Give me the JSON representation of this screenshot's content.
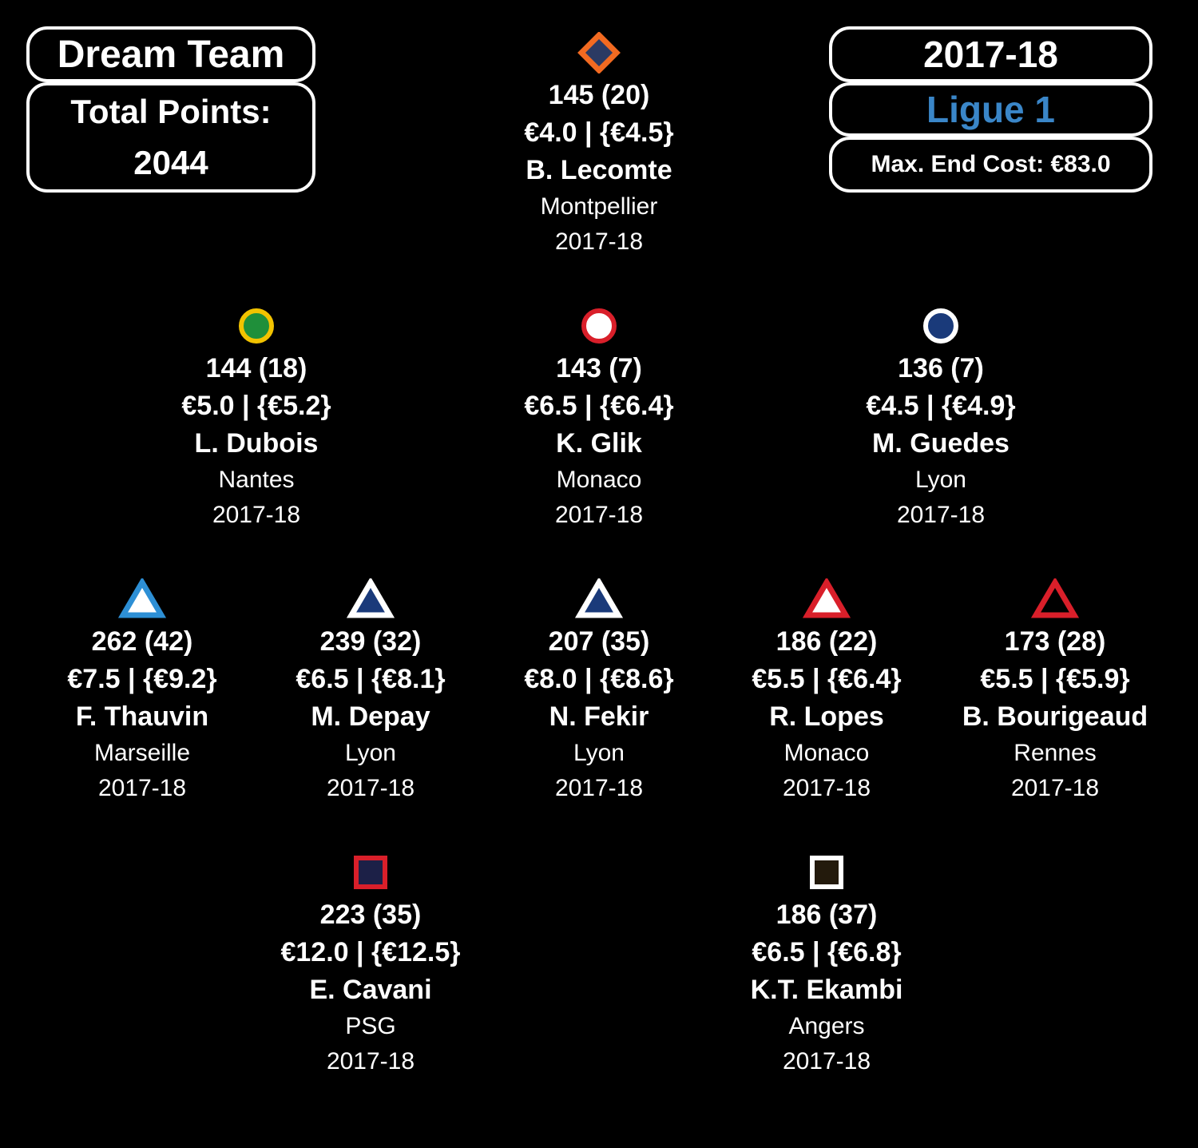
{
  "header": {
    "title": "Dream Team",
    "total_points_label": "Total Points:",
    "total_points_value": "2044",
    "season": "2017-18",
    "league": "Ligue 1",
    "max_end_cost": "Max. End Cost: €83.0"
  },
  "colors": {
    "league_text": "#3a86c8",
    "background": "#000000",
    "text": "#ffffff"
  },
  "players": [
    {
      "id": "lecomte",
      "points": "145 (20)",
      "price": "€4.0 | {€4.5}",
      "name": "B. Lecomte",
      "team": "Montpellier",
      "season": "2017-18",
      "icon": "diamond-icon",
      "fill": "#2b3a63",
      "stroke": "#f26a21"
    },
    {
      "id": "dubois",
      "points": "144 (18)",
      "price": "€5.0 | {€5.2}",
      "name": "L. Dubois",
      "team": "Nantes",
      "season": "2017-18",
      "icon": "circle-icon",
      "fill": "#1f8f3a",
      "stroke": "#f2c300"
    },
    {
      "id": "glik",
      "points": "143 (7)",
      "price": "€6.5 | {€6.4}",
      "name": "K. Glik",
      "team": "Monaco",
      "season": "2017-18",
      "icon": "circle-icon",
      "fill": "#ffffff",
      "stroke": "#d91f2a"
    },
    {
      "id": "guedes",
      "points": "136 (7)",
      "price": "€4.5 | {€4.9}",
      "name": "M. Guedes",
      "team": "Lyon",
      "season": "2017-18",
      "icon": "circle-icon",
      "fill": "#1a3a7a",
      "stroke": "#ffffff"
    },
    {
      "id": "thauvin",
      "points": "262 (42)",
      "price": "€7.5 | {€9.2}",
      "name": "F. Thauvin",
      "team": "Marseille",
      "season": "2017-18",
      "icon": "triangle-icon",
      "fill": "#ffffff",
      "stroke": "#2d8fd5"
    },
    {
      "id": "depay",
      "points": "239 (32)",
      "price": "€6.5 | {€8.1}",
      "name": "M. Depay",
      "team": "Lyon",
      "season": "2017-18",
      "icon": "triangle-icon",
      "fill": "#1a3a7a",
      "stroke": "#ffffff"
    },
    {
      "id": "fekir",
      "points": "207 (35)",
      "price": "€8.0 | {€8.6}",
      "name": "N. Fekir",
      "team": "Lyon",
      "season": "2017-18",
      "icon": "triangle-icon",
      "fill": "#1a3a7a",
      "stroke": "#ffffff"
    },
    {
      "id": "lopes",
      "points": "186 (22)",
      "price": "€5.5 | {€6.4}",
      "name": "R. Lopes",
      "team": "Monaco",
      "season": "2017-18",
      "icon": "triangle-icon",
      "fill": "#ffffff",
      "stroke": "#d91f2a"
    },
    {
      "id": "bourigeaud",
      "points": "173 (28)",
      "price": "€5.5 | {€5.9}",
      "name": "B. Bourigeaud",
      "team": "Rennes",
      "season": "2017-18",
      "icon": "triangle-icon",
      "fill": "#000000",
      "stroke": "#d91f2a"
    },
    {
      "id": "cavani",
      "points": "223 (35)",
      "price": "€12.0 | {€12.5}",
      "name": "E. Cavani",
      "team": "PSG",
      "season": "2017-18",
      "icon": "square-icon",
      "fill": "#1c2047",
      "stroke": "#d91f2a"
    },
    {
      "id": "ekambi",
      "points": "186 (37)",
      "price": "€6.5 | {€6.8}",
      "name": "K.T. Ekambi",
      "team": "Angers",
      "season": "2017-18",
      "icon": "square-icon",
      "fill": "#231a0c",
      "stroke": "#ffffff"
    }
  ]
}
